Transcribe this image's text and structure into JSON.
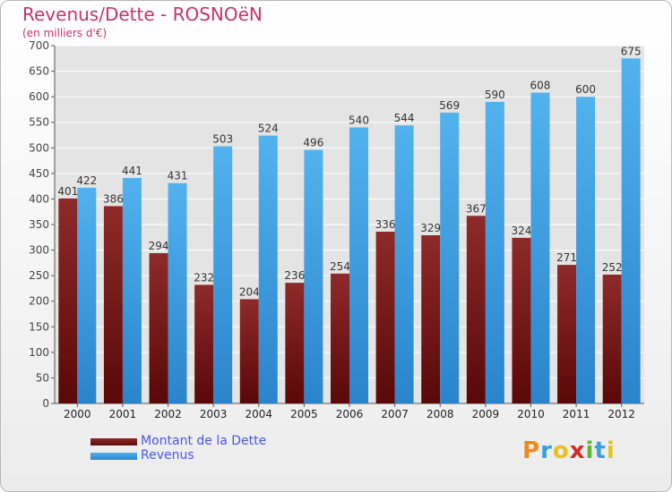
{
  "header": {
    "title": "Revenus/Dette - ROSNOëN",
    "subtitle": "(en milliers d'€)"
  },
  "chart_data": {
    "type": "bar",
    "title": "Revenus/Dette - ROSNOëN",
    "subtitle": "(en milliers d'€)",
    "xlabel": "",
    "ylabel": "",
    "categories": [
      "2000",
      "2001",
      "2002",
      "2003",
      "2004",
      "2005",
      "2006",
      "2007",
      "2008",
      "2009",
      "2010",
      "2011",
      "2012"
    ],
    "series": [
      {
        "name": "Montant de la Dette",
        "color": "#7a1c1c",
        "values": [
          401,
          386,
          294,
          232,
          204,
          236,
          254,
          336,
          329,
          367,
          324,
          271,
          252
        ]
      },
      {
        "name": "Revenus",
        "color": "#3a9ee3",
        "values": [
          422,
          441,
          431,
          503,
          524,
          496,
          540,
          544,
          569,
          590,
          608,
          600,
          675
        ]
      }
    ],
    "ylim": [
      0,
      700
    ],
    "yticks": [
      0,
      50,
      100,
      150,
      200,
      250,
      300,
      350,
      400,
      450,
      500,
      550,
      600,
      650,
      700
    ],
    "grid": true,
    "legend_placement": "bottom-left"
  },
  "legend": {
    "items": [
      {
        "label": "Montant de la Dette",
        "color": "#7a1c1c"
      },
      {
        "label": "Revenus",
        "color": "#3a9ee3"
      }
    ]
  },
  "logo": {
    "text": "Proxiti",
    "letters": [
      "P",
      "r",
      "o",
      "x",
      "i",
      "t",
      "i"
    ],
    "colors": [
      "#f08a1c",
      "#3a9ee3",
      "#e8c21c",
      "#d42a2a",
      "#5ab82a",
      "#3a9ee3",
      "#e8c21c"
    ]
  }
}
